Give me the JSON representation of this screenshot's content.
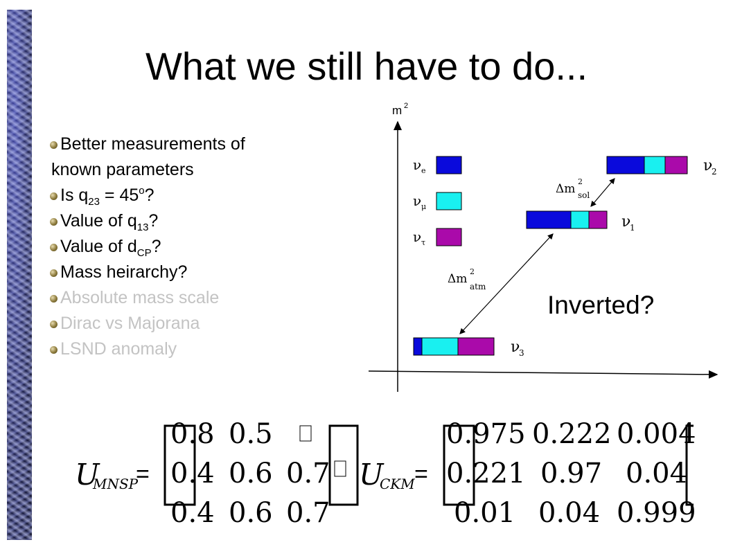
{
  "slide": {
    "title": "What we still have to do..."
  },
  "bullets": [
    {
      "text": "Better measurements of",
      "style": "normal"
    },
    {
      "text": "known parameters",
      "style": "continuation"
    },
    {
      "pre": "Is q",
      "sub": "23",
      "post": " = 45",
      "sup": "o",
      "end": "?",
      "style": "normal"
    },
    {
      "pre": "Value of q",
      "sub": "13",
      "post": "?",
      "style": "normal"
    },
    {
      "pre": "Value of d",
      "sub": "CP",
      "post": "?",
      "style": "normal"
    },
    {
      "text": "Mass heirarchy?",
      "style": "normal"
    },
    {
      "text": "Absolute mass scale",
      "style": "grey"
    },
    {
      "text": "Dirac vs Majorana",
      "style": "grey"
    },
    {
      "text": "LSND anomaly",
      "style": "grey"
    }
  ],
  "diagram": {
    "y_axis_label": "m",
    "y_axis_sup": "2",
    "flavours": [
      "ν",
      "ν",
      "ν"
    ],
    "flavour_subs": [
      "e",
      "μ",
      "τ"
    ],
    "mass_labels": [
      "ν",
      "ν",
      "ν"
    ],
    "mass_subs": [
      "2",
      "1",
      "3"
    ],
    "dm_sol": {
      "delta": "Δm",
      "sup": "2",
      "sub": "sol"
    },
    "dm_atm": {
      "delta": "Δm",
      "sup": "2",
      "sub": "atm"
    },
    "inverted_label": "Inverted?",
    "colors": {
      "nu_e": "#0a0adc",
      "nu_mu": "#19f0f0",
      "nu_tau": "#aa0aaa"
    }
  },
  "matrices": {
    "mnsp": {
      "name": "U",
      "sub": "MNSP",
      "equals": "=",
      "rows": [
        [
          "0.8",
          "0.5",
          ""
        ],
        [
          "0.4",
          "0.6",
          "0.7"
        ],
        [
          "0.4",
          "0.6",
          "0.7"
        ]
      ]
    },
    "ckm": {
      "name": "U",
      "sub": "CKM",
      "equals": "=",
      "rows": [
        [
          "0.975",
          "0.222",
          "0.004"
        ],
        [
          "0.221",
          "0.97",
          "0.04"
        ],
        [
          "0.01",
          "0.04",
          "0.999"
        ]
      ]
    }
  }
}
